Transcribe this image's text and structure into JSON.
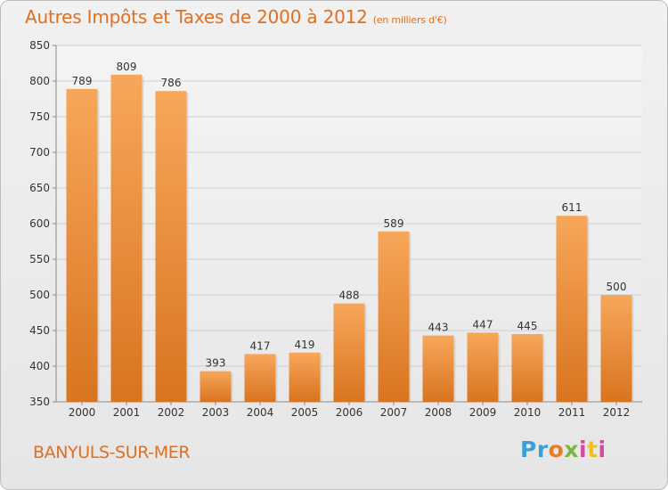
{
  "header": {
    "title": "Autres Impôts et Taxes de 2000 à 2012",
    "subtitle": "(en milliers d'€)"
  },
  "footer": {
    "location": "BANYULS-SUR-MER",
    "logo_text": "Proxiti"
  },
  "colors": {
    "title": "#e06f1e",
    "bar_top": "#f7a75a",
    "bar_bottom": "#d9741f",
    "grid": "#cfcfcf"
  },
  "chart_data": {
    "type": "bar",
    "title": "Autres Impôts et Taxes de 2000 à 2012",
    "subtitle": "(en milliers d'€)",
    "categories": [
      "2000",
      "2001",
      "2002",
      "2003",
      "2004",
      "2005",
      "2006",
      "2007",
      "2008",
      "2009",
      "2010",
      "2011",
      "2012"
    ],
    "values": [
      789,
      809,
      786,
      393,
      417,
      419,
      488,
      589,
      443,
      447,
      445,
      611,
      500
    ],
    "ylim": [
      350,
      850
    ],
    "yticks": [
      350,
      400,
      450,
      500,
      550,
      600,
      650,
      700,
      750,
      800,
      850
    ],
    "grid": true,
    "data_labels": true
  }
}
